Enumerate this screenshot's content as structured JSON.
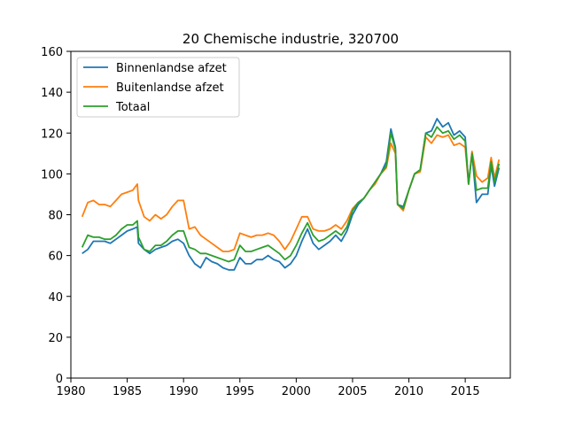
{
  "chart_data": {
    "type": "line",
    "title": "20 Chemische industrie, 320700",
    "xlabel": "",
    "ylabel": "",
    "xlim": [
      1980,
      2019
    ],
    "ylim": [
      0,
      160
    ],
    "xticks": [
      1980,
      1985,
      1990,
      1995,
      2000,
      2005,
      2010,
      2015
    ],
    "yticks": [
      0,
      20,
      40,
      60,
      80,
      100,
      120,
      140,
      160
    ],
    "grid": false,
    "legend_position": "top-left",
    "series": [
      {
        "name": "Binnenlandse afzet",
        "color": "#1f77b4",
        "x": [
          1981.0,
          1981.5,
          1982.0,
          1982.5,
          1983.0,
          1983.5,
          1984.0,
          1984.5,
          1985.0,
          1985.5,
          1985.9,
          1986.0,
          1986.5,
          1987.0,
          1987.5,
          1988.0,
          1988.5,
          1989.0,
          1989.5,
          1990.0,
          1990.5,
          1991.0,
          1991.5,
          1992.0,
          1992.5,
          1993.0,
          1993.5,
          1994.0,
          1994.5,
          1995.0,
          1995.5,
          1996.0,
          1996.5,
          1997.0,
          1997.5,
          1998.0,
          1998.5,
          1999.0,
          1999.5,
          2000.0,
          2000.5,
          2001.0,
          2001.5,
          2002.0,
          2002.5,
          2003.0,
          2003.5,
          2004.0,
          2004.5,
          2005.0,
          2005.5,
          2006.0,
          2006.5,
          2007.0,
          2007.5,
          2008.0,
          2008.4,
          2008.8,
          2009.0,
          2009.5,
          2010.0,
          2010.5,
          2011.0,
          2011.5,
          2012.0,
          2012.5,
          2013.0,
          2013.5,
          2014.0,
          2014.5,
          2015.0,
          2015.3,
          2015.6,
          2016.0,
          2016.5,
          2017.0,
          2017.3,
          2017.6,
          2018.0
        ],
        "values": [
          61,
          63,
          67,
          67,
          67,
          66,
          68,
          70,
          72,
          73,
          74,
          66,
          63,
          61,
          63,
          64,
          65,
          67,
          68,
          66,
          60,
          56,
          54,
          59,
          57,
          56,
          54,
          53,
          53,
          59,
          56,
          56,
          58,
          58,
          60,
          58,
          57,
          54,
          56,
          60,
          67,
          73,
          66,
          63,
          65,
          67,
          70,
          67,
          72,
          80,
          85,
          88,
          92,
          96,
          100,
          106,
          122,
          113,
          85,
          84,
          92,
          100,
          102,
          120,
          121,
          127,
          123,
          125,
          119,
          121,
          118,
          95,
          110,
          86,
          90,
          90,
          104,
          94,
          103
        ]
      },
      {
        "name": "Buitenlandse afzet",
        "color": "#ff7f0e",
        "x": [
          1981.0,
          1981.5,
          1982.0,
          1982.5,
          1983.0,
          1983.5,
          1984.0,
          1984.5,
          1985.0,
          1985.5,
          1985.9,
          1986.0,
          1986.5,
          1987.0,
          1987.5,
          1988.0,
          1988.5,
          1989.0,
          1989.5,
          1990.0,
          1990.5,
          1991.0,
          1991.5,
          1992.0,
          1992.5,
          1993.0,
          1993.5,
          1994.0,
          1994.5,
          1995.0,
          1995.5,
          1996.0,
          1996.5,
          1997.0,
          1997.5,
          1998.0,
          1998.5,
          1999.0,
          1999.5,
          2000.0,
          2000.5,
          2001.0,
          2001.5,
          2002.0,
          2002.5,
          2003.0,
          2003.5,
          2004.0,
          2004.5,
          2005.0,
          2005.5,
          2006.0,
          2006.5,
          2007.0,
          2007.5,
          2008.0,
          2008.4,
          2008.8,
          2009.0,
          2009.5,
          2010.0,
          2010.5,
          2011.0,
          2011.5,
          2012.0,
          2012.5,
          2013.0,
          2013.5,
          2014.0,
          2014.5,
          2015.0,
          2015.3,
          2015.6,
          2016.0,
          2016.5,
          2017.0,
          2017.3,
          2017.6,
          2018.0
        ],
        "values": [
          79,
          86,
          87,
          85,
          85,
          84,
          87,
          90,
          91,
          92,
          95,
          87,
          79,
          77,
          80,
          78,
          80,
          84,
          87,
          87,
          73,
          74,
          70,
          68,
          66,
          64,
          62,
          62,
          63,
          71,
          70,
          69,
          70,
          70,
          71,
          70,
          67,
          63,
          67,
          73,
          79,
          79,
          73,
          72,
          72,
          73,
          75,
          73,
          77,
          83,
          86,
          88,
          92,
          95,
          100,
          103,
          115,
          110,
          85,
          82,
          92,
          100,
          101,
          118,
          115,
          119,
          118,
          119,
          114,
          115,
          113,
          95,
          111,
          99,
          96,
          98,
          108,
          98,
          107
        ]
      },
      {
        "name": "Totaal",
        "color": "#2ca02c",
        "x": [
          1981.0,
          1981.5,
          1982.0,
          1982.5,
          1983.0,
          1983.5,
          1984.0,
          1984.5,
          1985.0,
          1985.5,
          1985.9,
          1986.0,
          1986.5,
          1987.0,
          1987.5,
          1988.0,
          1988.5,
          1989.0,
          1989.5,
          1990.0,
          1990.5,
          1991.0,
          1991.5,
          1992.0,
          1992.5,
          1993.0,
          1993.5,
          1994.0,
          1994.5,
          1995.0,
          1995.5,
          1996.0,
          1996.5,
          1997.0,
          1997.5,
          1998.0,
          1998.5,
          1999.0,
          1999.5,
          2000.0,
          2000.5,
          2001.0,
          2001.5,
          2002.0,
          2002.5,
          2003.0,
          2003.5,
          2004.0,
          2004.5,
          2005.0,
          2005.5,
          2006.0,
          2006.5,
          2007.0,
          2007.5,
          2008.0,
          2008.4,
          2008.8,
          2009.0,
          2009.5,
          2010.0,
          2010.5,
          2011.0,
          2011.5,
          2012.0,
          2012.5,
          2013.0,
          2013.5,
          2014.0,
          2014.5,
          2015.0,
          2015.3,
          2015.6,
          2016.0,
          2016.5,
          2017.0,
          2017.3,
          2017.6,
          2018.0
        ],
        "values": [
          64,
          70,
          69,
          69,
          68,
          68,
          70,
          73,
          75,
          75,
          77,
          69,
          63,
          62,
          65,
          65,
          67,
          70,
          72,
          72,
          64,
          63,
          61,
          61,
          60,
          59,
          58,
          57,
          58,
          65,
          62,
          62,
          63,
          64,
          65,
          63,
          61,
          58,
          60,
          65,
          71,
          76,
          70,
          67,
          68,
          70,
          72,
          70,
          74,
          82,
          86,
          88,
          92,
          96,
          100,
          104,
          120,
          112,
          85,
          83,
          92,
          100,
          102,
          120,
          118,
          123,
          120,
          121,
          117,
          119,
          116,
          95,
          110,
          92,
          93,
          93,
          106,
          96,
          105
        ]
      }
    ]
  }
}
